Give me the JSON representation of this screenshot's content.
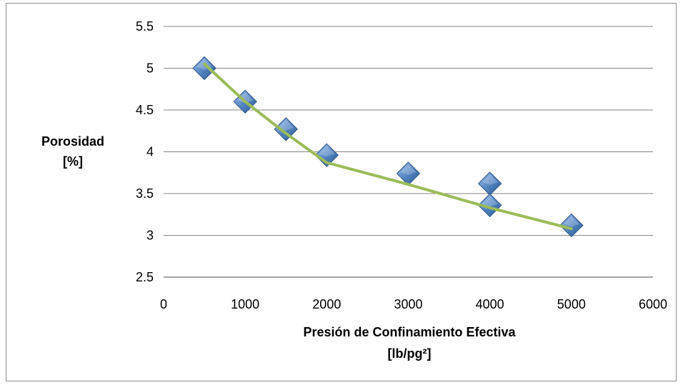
{
  "chart_data": {
    "type": "scatter",
    "title": "",
    "xlabel_lines": [
      "Presión de Confinamiento Efectiva",
      "[lb/pg²]"
    ],
    "ylabel_lines": [
      "Porosidad",
      "[%]"
    ],
    "xlim": [
      0,
      6000
    ],
    "ylim": [
      2.5,
      5.5
    ],
    "xticks": [
      0,
      1000,
      2000,
      3000,
      4000,
      5000,
      6000
    ],
    "xtick_labels": [
      "0",
      "1000",
      "2000",
      "3000",
      "4000",
      "5000",
      "6000"
    ],
    "yticks": [
      2.5,
      3,
      3.5,
      4,
      4.5,
      5,
      5.5
    ],
    "ytick_labels": [
      "2.5",
      "3",
      "3.5",
      "4",
      "4.5",
      "5",
      "5.5"
    ],
    "grid": "horizontal",
    "legend": "none",
    "series": [
      {
        "kind": "points",
        "marker": "diamond",
        "color": "#4f81bd",
        "points": [
          {
            "x": 500,
            "y": 5.0
          },
          {
            "x": 1000,
            "y": 4.6
          },
          {
            "x": 1500,
            "y": 4.27
          },
          {
            "x": 2000,
            "y": 3.96
          },
          {
            "x": 3000,
            "y": 3.74
          },
          {
            "x": 4000,
            "y": 3.62
          },
          {
            "x": 4000,
            "y": 3.36
          },
          {
            "x": 5000,
            "y": 3.12
          }
        ]
      },
      {
        "kind": "line",
        "color": "#9bbb59",
        "points": [
          {
            "x": 500,
            "y": 5.05
          },
          {
            "x": 1000,
            "y": 4.6
          },
          {
            "x": 1500,
            "y": 4.22
          },
          {
            "x": 2000,
            "y": 3.87
          },
          {
            "x": 3000,
            "y": 3.61
          },
          {
            "x": 4000,
            "y": 3.33
          },
          {
            "x": 5000,
            "y": 3.08
          }
        ]
      }
    ]
  }
}
